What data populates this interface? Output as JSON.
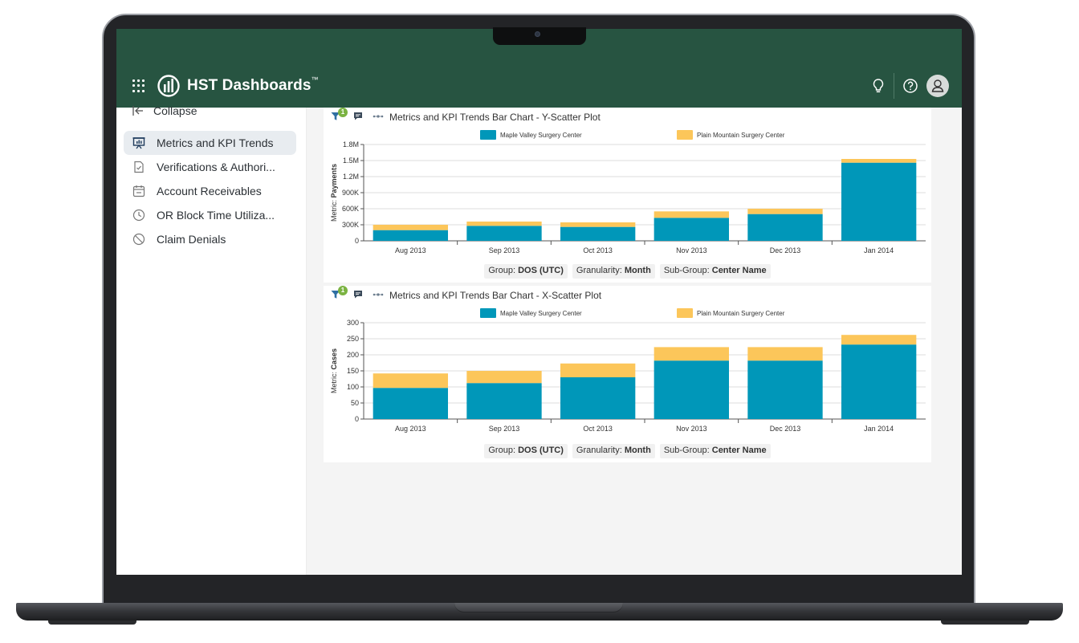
{
  "app": {
    "brand": "HST Dashboards",
    "trademark": "™"
  },
  "header": {
    "icons": [
      "apps-grid-icon",
      "lightbulb-icon",
      "help-icon",
      "user-avatar-icon"
    ]
  },
  "sidebar": {
    "collapse_label": "Collapse",
    "items": [
      {
        "label": "Metrics and KPI Trends",
        "icon": "presentation-chart-icon",
        "active": true
      },
      {
        "label": "Verifications & Authori...",
        "icon": "document-check-icon",
        "active": false
      },
      {
        "label": "Account Receivables",
        "icon": "calendar-icon",
        "active": false
      },
      {
        "label": "OR Block Time Utiliza...",
        "icon": "clock-icon",
        "active": false
      },
      {
        "label": "Claim Denials",
        "icon": "ban-icon",
        "active": false
      }
    ]
  },
  "colors": {
    "header": "#275441",
    "series1": "#0097b9",
    "series2": "#fcc65a",
    "badge": "#7bb342"
  },
  "panels": [
    {
      "title": "Metrics and KPI Trends Bar Chart - Y-Scatter Plot",
      "filter_count": "1",
      "footer": {
        "group_label": "Group:",
        "group_value": "DOS (UTC)",
        "granularity_label": "Granularity:",
        "granularity_value": "Month",
        "subgroup_label": "Sub-Group:",
        "subgroup_value": "Center Name"
      }
    },
    {
      "title": "Metrics and KPI Trends Bar Chart - X-Scatter Plot",
      "filter_count": "1",
      "footer": {
        "group_label": "Group:",
        "group_value": "DOS (UTC)",
        "granularity_label": "Granularity:",
        "granularity_value": "Month",
        "subgroup_label": "Sub-Group:",
        "subgroup_value": "Center Name"
      }
    }
  ],
  "chart_data": [
    {
      "type": "bar",
      "stacked": true,
      "categories": [
        "Aug 2013",
        "Sep 2013",
        "Oct 2013",
        "Nov 2013",
        "Dec 2013",
        "Jan 2014"
      ],
      "series": [
        {
          "name": "Maple Valley Surgery Center",
          "color": "#0097b9",
          "values": [
            200000,
            280000,
            260000,
            430000,
            500000,
            1460000
          ]
        },
        {
          "name": "Plain Mountain Surgery Center",
          "color": "#fcc65a",
          "values": [
            100000,
            80000,
            85000,
            120000,
            100000,
            70000
          ]
        }
      ],
      "ylabel_prefix": "Metric: ",
      "ylabel": "Payments",
      "ylim": [
        0,
        1800000
      ],
      "yticks": [
        0,
        300000,
        600000,
        900000,
        1200000,
        1500000,
        1800000
      ],
      "ytick_labels": [
        "0",
        "300K",
        "600K",
        "900K",
        "1.2M",
        "1.5M",
        "1.8M"
      ],
      "grid": true,
      "legend": "top"
    },
    {
      "type": "bar",
      "stacked": true,
      "categories": [
        "Aug 2013",
        "Sep 2013",
        "Oct 2013",
        "Nov 2013",
        "Dec 2013",
        "Jan 2014"
      ],
      "series": [
        {
          "name": "Maple Valley Surgery Center",
          "color": "#0097b9",
          "values": [
            97,
            112,
            130,
            182,
            182,
            232
          ]
        },
        {
          "name": "Plain Mountain Surgery Center",
          "color": "#fcc65a",
          "values": [
            45,
            38,
            43,
            42,
            42,
            30
          ]
        }
      ],
      "ylabel_prefix": "Metric: ",
      "ylabel": "Cases",
      "ylim": [
        0,
        300
      ],
      "yticks": [
        0,
        50,
        100,
        150,
        200,
        250,
        300
      ],
      "ytick_labels": [
        "0",
        "50",
        "100",
        "150",
        "200",
        "250",
        "300"
      ],
      "grid": true,
      "legend": "top"
    }
  ]
}
